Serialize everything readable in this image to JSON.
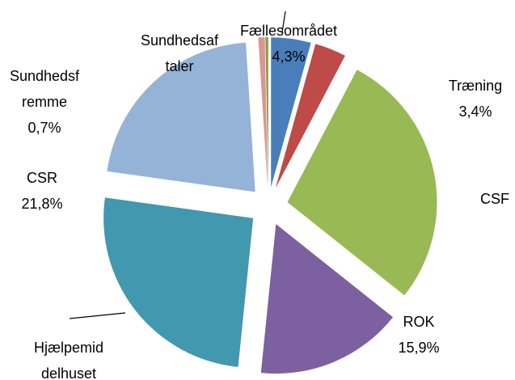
{
  "chart_data": {
    "type": "pie",
    "categories": [
      "Fællesområdet",
      "Træning",
      "CSF",
      "ROK",
      "Hjælpemid\ndelhuset",
      "CSR",
      "Sundhedsf\nremme",
      "Sundhedsaf\ntaler"
    ],
    "values": [
      4.3,
      3.4,
      28.0,
      15.9,
      25.6,
      21.8,
      0.7,
      0.3
    ],
    "value_labels": [
      "4,3%",
      "3,4%",
      null,
      "15,9%",
      null,
      "21,8%",
      "0,7%",
      null
    ],
    "colors": [
      "#4a7ebb",
      "#be4b48",
      "#98b954",
      "#7d60a0",
      "#4198af",
      "#95b3d7",
      "#d99694",
      "#8c9a3b"
    ],
    "exploded": true
  }
}
